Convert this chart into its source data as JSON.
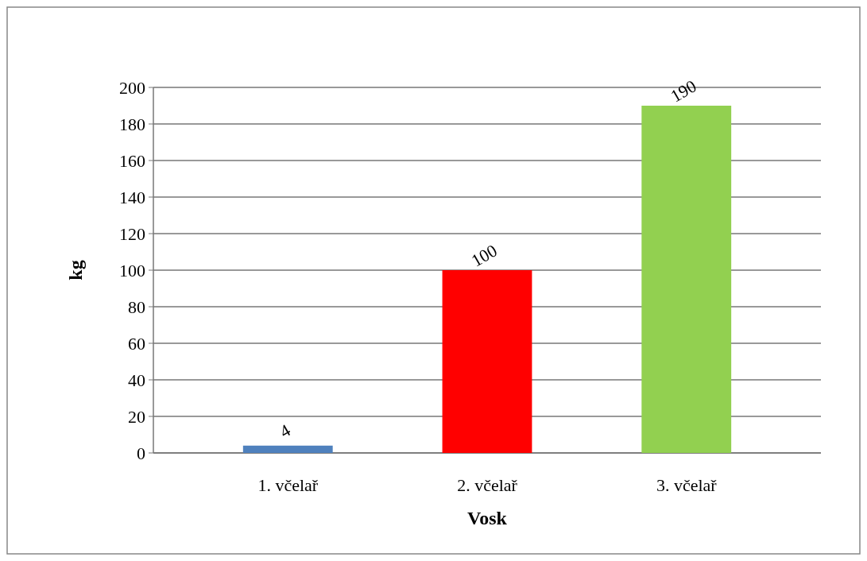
{
  "chart_data": {
    "type": "bar",
    "xlabel": "Vosk",
    "ylabel": "kg",
    "categories": [
      "1. včelař",
      "2. včelař",
      "3. včelař"
    ],
    "values": [
      4,
      100,
      190
    ],
    "colors": [
      "#4f81bd",
      "#ff0000",
      "#92d050"
    ],
    "ylim": [
      0,
      200
    ],
    "yticks": [
      0,
      20,
      40,
      60,
      80,
      100,
      120,
      140,
      160,
      180,
      200
    ],
    "grid": "y",
    "data_labels": true
  }
}
